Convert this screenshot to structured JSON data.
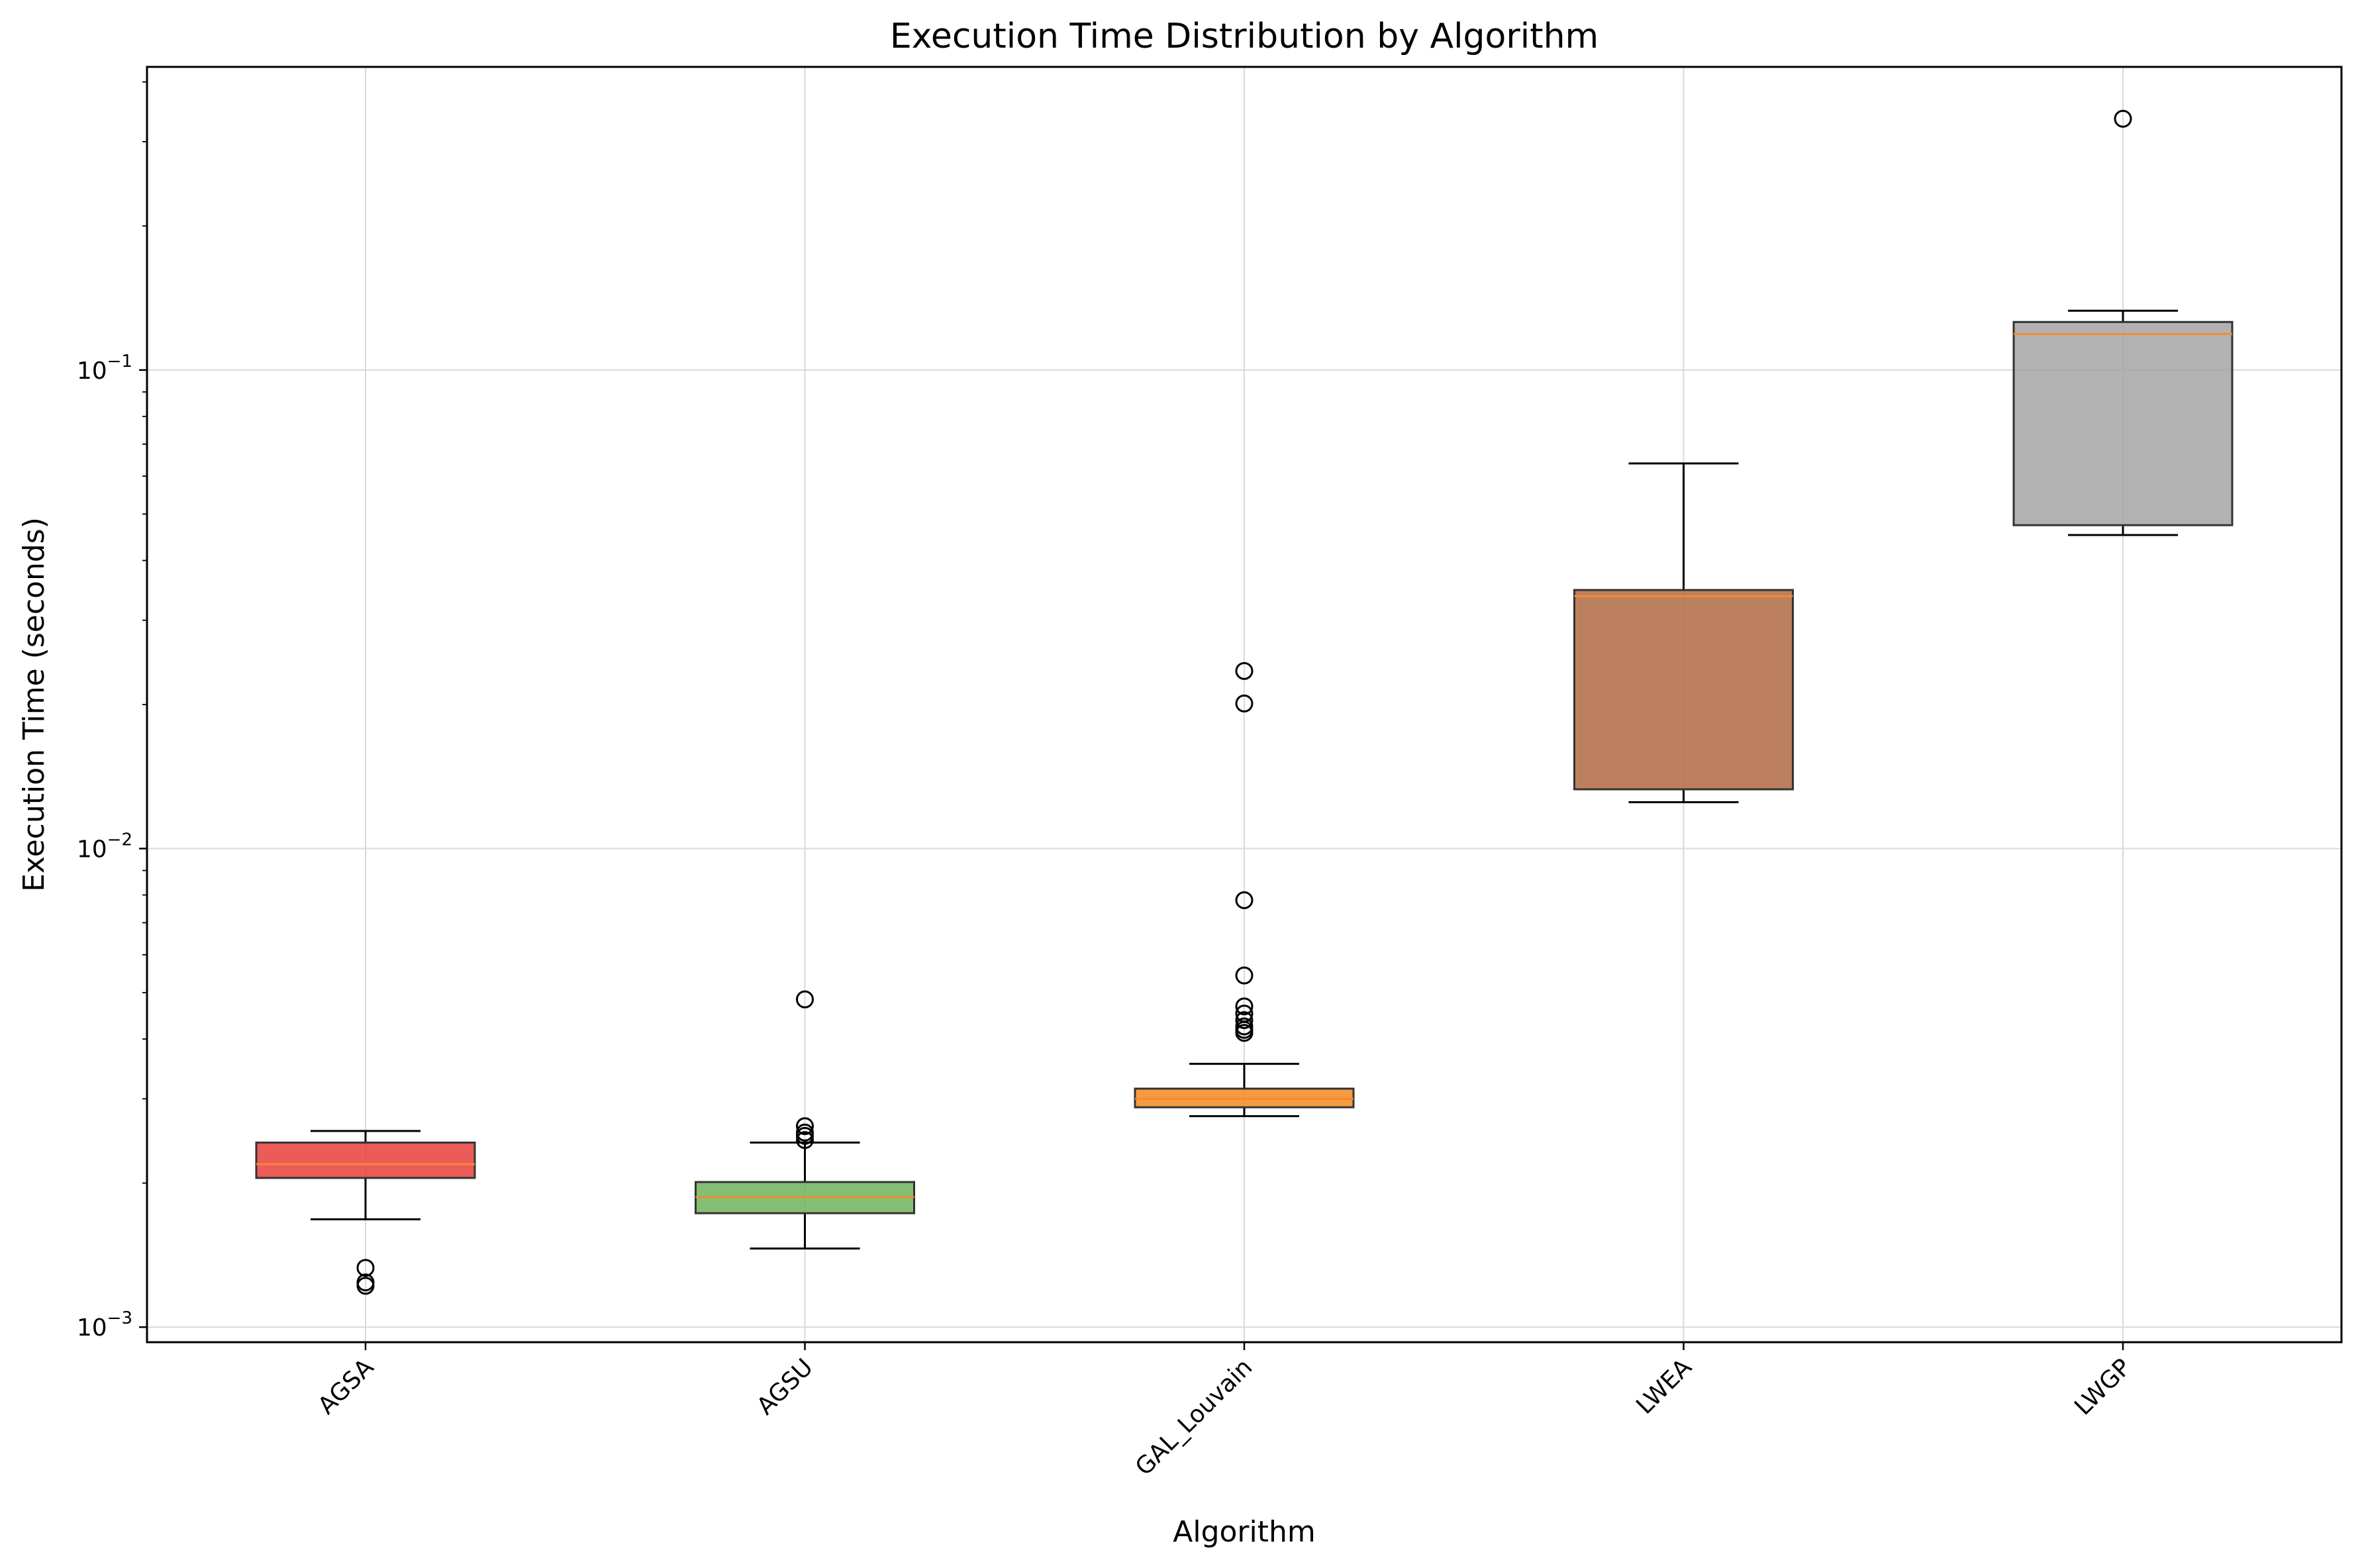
{
  "chart_data": {
    "type": "boxplot",
    "title": "Execution Time Distribution by Algorithm",
    "xlabel": "Algorithm",
    "ylabel": "Execution Time (seconds)",
    "yscale": "log",
    "ylim": [
      0.00093,
      0.43
    ],
    "grid": true,
    "y_ticks": [
      {
        "value": 0.001,
        "base": "10",
        "exp": "−3"
      },
      {
        "value": 0.01,
        "base": "10",
        "exp": "−2"
      },
      {
        "value": 0.1,
        "base": "10",
        "exp": "−1"
      }
    ],
    "categories": [
      "AGSA",
      "AGSU",
      "GAL_Louvain",
      "LWEA",
      "LWGP"
    ],
    "boxes": [
      {
        "label": "AGSA",
        "color": "#e8403c",
        "whisker_low": 0.00168,
        "q1": 0.00205,
        "median": 0.00219,
        "q3": 0.00243,
        "whisker_high": 0.00257,
        "outliers": [
          0.00133,
          0.00124,
          0.00122
        ]
      },
      {
        "label": "AGSU",
        "color": "#6fb35a",
        "whisker_low": 0.00146,
        "q1": 0.00173,
        "median": 0.00187,
        "q3": 0.00201,
        "whisker_high": 0.00243,
        "outliers": [
          0.00484,
          0.00263,
          0.00255,
          0.00251,
          0.00246
        ]
      },
      {
        "label": "GAL_Louvain",
        "color": "#f6891f",
        "whisker_low": 0.00276,
        "q1": 0.00288,
        "median": 0.003,
        "q3": 0.00315,
        "whisker_high": 0.00355,
        "outliers": [
          0.0235,
          0.0201,
          0.0078,
          0.00543,
          0.00468,
          0.00452,
          0.00438,
          0.00425,
          0.00418,
          0.00412
        ]
      },
      {
        "label": "LWEA",
        "color": "#b06a43",
        "whisker_low": 0.0125,
        "q1": 0.0133,
        "median": 0.0337,
        "q3": 0.0347,
        "whisker_high": 0.0638,
        "outliers": []
      },
      {
        "label": "LWGP",
        "color": "#a5a5a5",
        "whisker_low": 0.0452,
        "q1": 0.0474,
        "median": 0.119,
        "q3": 0.126,
        "whisker_high": 0.133,
        "outliers": [
          0.335
        ]
      }
    ],
    "median_color": "#f28a2e"
  }
}
